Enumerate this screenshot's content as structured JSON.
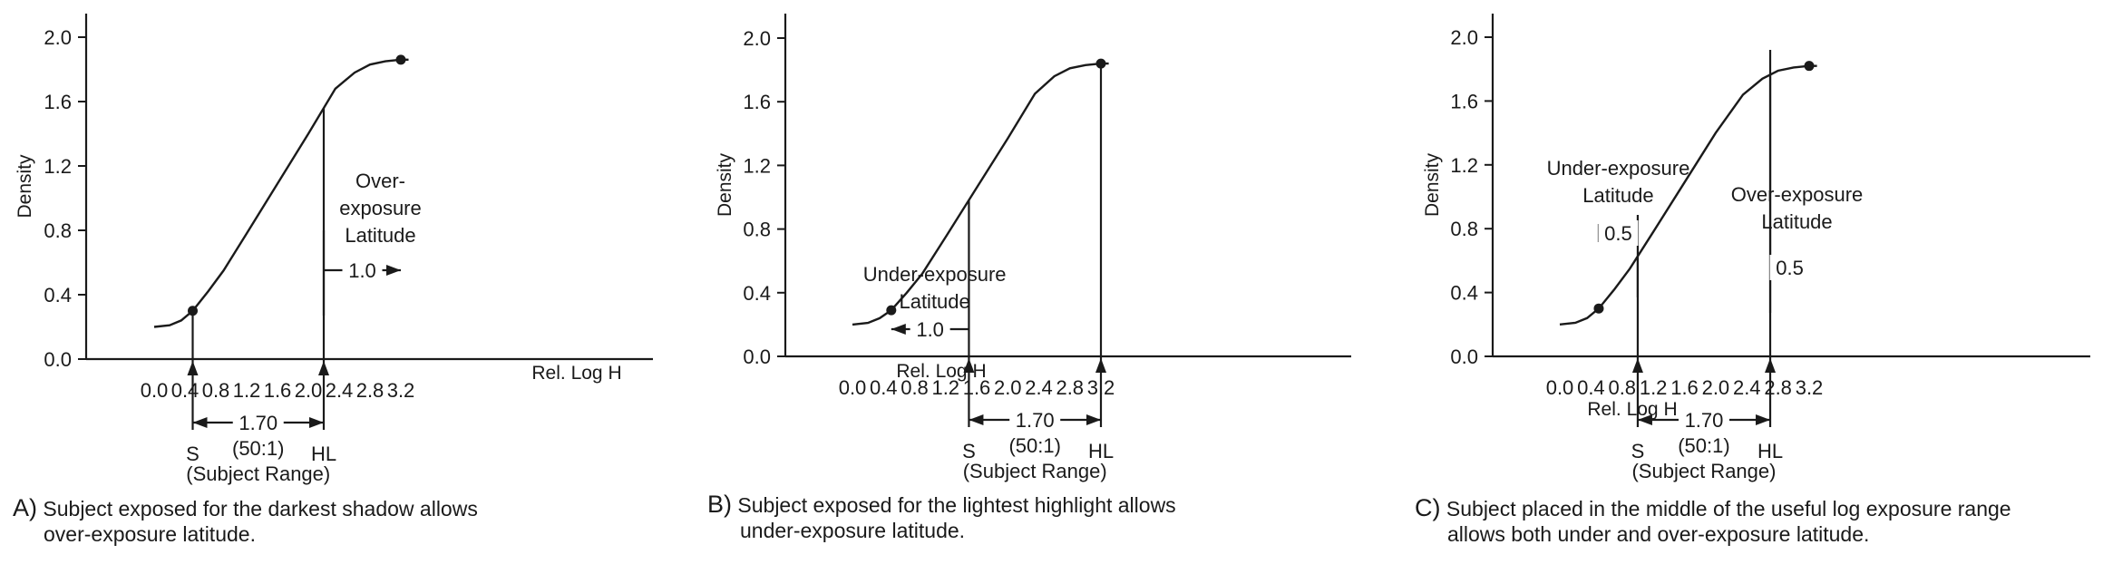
{
  "panels": [
    {
      "id": "A",
      "caption_letter": "A)",
      "caption_lines": [
        "Subject exposed for the darkest shadow allows",
        "over-exposure latitude."
      ],
      "chart_data": {
        "type": "line",
        "ylabel": "Density",
        "xlabel": "Rel. Log H",
        "x_ticks": [
          "0.0",
          "0.4",
          "0.8",
          "1.2",
          "1.6",
          "2.0",
          "2.4",
          "2.8",
          "3.2"
        ],
        "y_ticks": [
          "0.0",
          "0.4",
          "0.8",
          "1.2",
          "1.6",
          "2.0"
        ],
        "xlim": [
          0,
          3.2
        ],
        "ylim": [
          0,
          2.0
        ],
        "series": [
          {
            "x": [
              0.0,
              0.2,
              0.35,
              0.5,
              0.7,
              0.9,
              1.2,
              1.6,
              2.0,
              2.35,
              2.6,
              2.8,
              3.0,
              3.2,
              3.3
            ],
            "y": [
              0.2,
              0.21,
              0.24,
              0.3,
              0.42,
              0.55,
              0.78,
              1.09,
              1.4,
              1.68,
              1.78,
              1.83,
              1.85,
              1.86,
              1.86
            ]
          }
        ],
        "points": [
          {
            "x": 0.5,
            "y": 0.3
          },
          {
            "x": 3.2,
            "y": 1.86
          }
        ],
        "markers": [
          {
            "label": "S",
            "x": 0.5
          },
          {
            "label": "HL",
            "x": 2.2
          }
        ],
        "range": {
          "from": 0.5,
          "to": 2.2,
          "label": "1.70",
          "ratio": "(50:1)",
          "name": "(Subject Range)"
        },
        "latitudes": [
          {
            "title_lines": [
              "Over-",
              "exposure",
              "Latitude"
            ],
            "value": "1.0",
            "from": 2.2,
            "to": 3.2
          }
        ]
      }
    },
    {
      "id": "B",
      "caption_letter": "B)",
      "caption_lines": [
        "Subject exposed for the lightest highlight allows",
        "under-exposure latitude."
      ],
      "chart_data": {
        "type": "line",
        "ylabel": "Density",
        "xlabel": "Rel. Log H",
        "x_ticks": [
          "0.0",
          "0.4",
          "0.8",
          "1.2",
          "1.6",
          "2.0",
          "2.4",
          "2.8",
          "3.2"
        ],
        "y_ticks": [
          "0.0",
          "0.4",
          "0.8",
          "1.2",
          "1.6",
          "2.0"
        ],
        "xlim": [
          0,
          3.2
        ],
        "ylim": [
          0,
          2.0
        ],
        "series": [
          {
            "x": [
              0.0,
              0.2,
              0.35,
              0.5,
              0.7,
              0.9,
              1.2,
              1.6,
              2.0,
              2.35,
              2.6,
              2.8,
              3.0,
              3.2,
              3.3
            ],
            "y": [
              0.2,
              0.21,
              0.24,
              0.29,
              0.4,
              0.52,
              0.75,
              1.06,
              1.37,
              1.65,
              1.76,
              1.81,
              1.83,
              1.84,
              1.84
            ]
          }
        ],
        "points": [
          {
            "x": 0.5,
            "y": 0.29
          },
          {
            "x": 3.2,
            "y": 1.84
          }
        ],
        "markers": [
          {
            "label": "S",
            "x": 1.5
          },
          {
            "label": "HL",
            "x": 3.2
          }
        ],
        "range": {
          "from": 1.5,
          "to": 3.2,
          "label": "1.70",
          "ratio": "(50:1)",
          "name": "(Subject Range)"
        },
        "latitudes": [
          {
            "title_lines": [
              "Under-exposure",
              "Latitude"
            ],
            "value": "1.0",
            "from": 0.5,
            "to": 1.5
          }
        ]
      }
    },
    {
      "id": "C",
      "caption_letter": "C)",
      "caption_lines": [
        "Subject placed in the middle of the useful log exposure range",
        "allows both under and over-exposure latitude."
      ],
      "chart_data": {
        "type": "line",
        "ylabel": "Density",
        "xlabel": "Rel. Log H",
        "x_ticks": [
          "0.0",
          "0.4",
          "0.8",
          "1.2",
          "1.6",
          "2.0",
          "2.4",
          "2.8",
          "3.2"
        ],
        "y_ticks": [
          "0.0",
          "0.4",
          "0.8",
          "1.2",
          "1.6",
          "2.0"
        ],
        "xlim": [
          0,
          3.2
        ],
        "ylim": [
          0,
          2.0
        ],
        "series": [
          {
            "x": [
              0.0,
              0.2,
              0.35,
              0.5,
              0.7,
              0.9,
              1.2,
              1.6,
              2.0,
              2.35,
              2.6,
              2.8,
              3.0,
              3.2,
              3.3
            ],
            "y": [
              0.2,
              0.21,
              0.24,
              0.3,
              0.42,
              0.55,
              0.78,
              1.09,
              1.4,
              1.64,
              1.74,
              1.79,
              1.81,
              1.82,
              1.82
            ]
          }
        ],
        "points": [
          {
            "x": 0.5,
            "y": 0.3
          },
          {
            "x": 3.2,
            "y": 1.82
          }
        ],
        "markers": [
          {
            "label": "S",
            "x": 1.0
          },
          {
            "label": "HL",
            "x": 2.7
          }
        ],
        "range": {
          "from": 1.0,
          "to": 2.7,
          "label": "1.70",
          "ratio": "(50:1)",
          "name": "(Subject Range)"
        },
        "latitudes": [
          {
            "title_lines": [
              "Under-exposure",
              "Latitude"
            ],
            "value": "0.5",
            "from": 0.5,
            "to": 1.0
          },
          {
            "title_lines": [
              "Over-exposure",
              "Latitude"
            ],
            "value": "0.5",
            "from": 2.7,
            "to": 3.2
          }
        ]
      }
    }
  ]
}
